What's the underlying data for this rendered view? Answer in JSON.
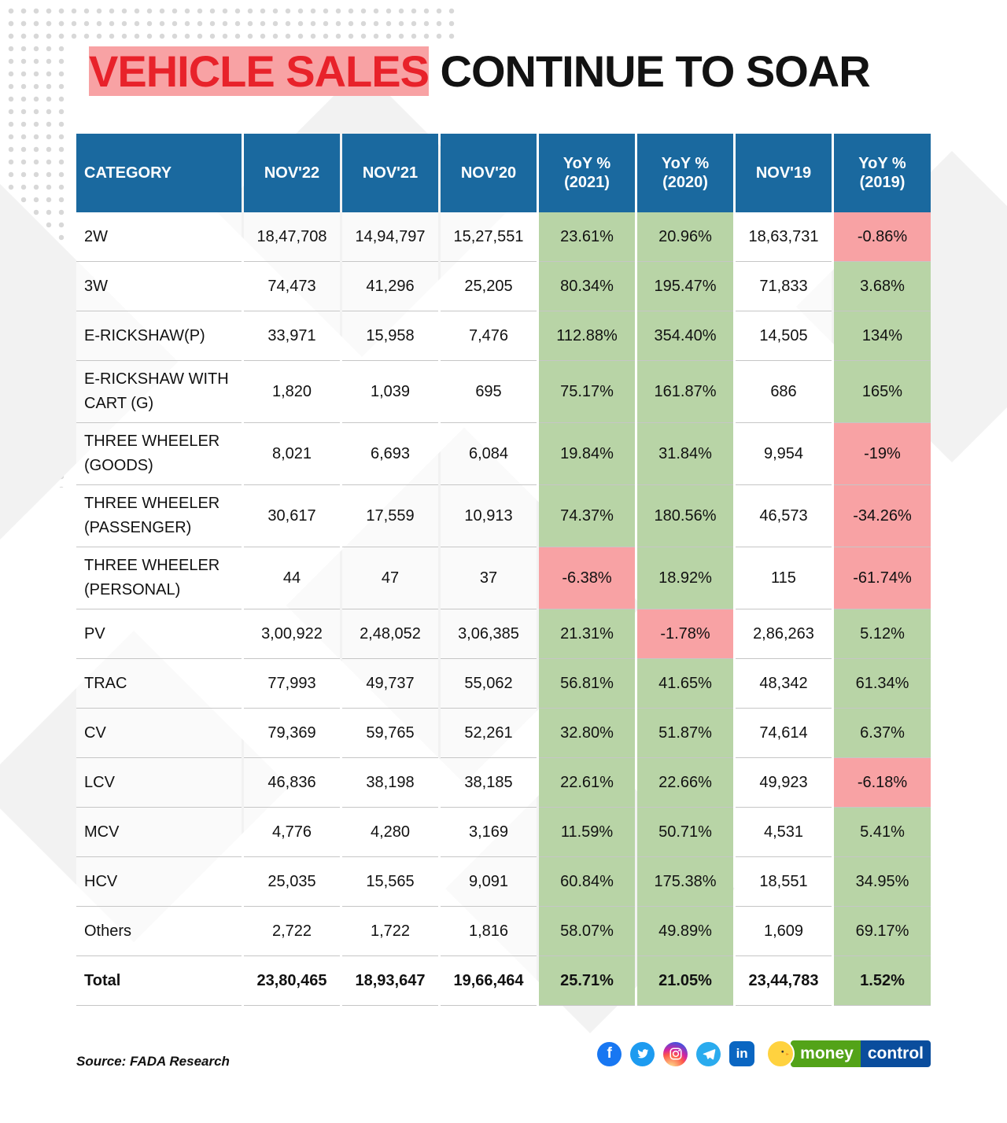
{
  "page": {
    "title_red": "VEHICLE SALES",
    "title_rest": " CONTINUE TO SOAR"
  },
  "chart_data": {
    "type": "table",
    "title": "VEHICLE SALES CONTINUE TO SOAR",
    "columns": [
      "CATEGORY",
      "NOV'22",
      "NOV'21",
      "NOV'20",
      "YoY % (2021)",
      "YoY % (2020)",
      "NOV'19",
      "YoY % (2019)"
    ],
    "rows": [
      {
        "cells": [
          "2W",
          "18,47,708",
          "14,94,797",
          "15,27,551",
          "23.61%",
          "20.96%",
          "18,63,731",
          "-0.86%"
        ],
        "yoy": [
          "green",
          "green",
          "red"
        ]
      },
      {
        "cells": [
          "3W",
          "74,473",
          "41,296",
          "25,205",
          "80.34%",
          "195.47%",
          "71,833",
          "3.68%"
        ],
        "yoy": [
          "green",
          "green",
          "green"
        ]
      },
      {
        "cells": [
          "E-RICKSHAW(P)",
          "33,971",
          "15,958",
          "7,476",
          "112.88%",
          "354.40%",
          "14,505",
          "134%"
        ],
        "yoy": [
          "green",
          "green",
          "green"
        ]
      },
      {
        "cells": [
          "E-RICKSHAW WITH CART (G)",
          "1,820",
          "1,039",
          "695",
          "75.17%",
          "161.87%",
          "686",
          "165%"
        ],
        "yoy": [
          "green",
          "green",
          "green"
        ]
      },
      {
        "cells": [
          "THREE WHEELER (GOODS)",
          "8,021",
          "6,693",
          "6,084",
          "19.84%",
          "31.84%",
          "9,954",
          "-19%"
        ],
        "yoy": [
          "green",
          "green",
          "red"
        ]
      },
      {
        "cells": [
          "THREE WHEELER (PASSENGER)",
          "30,617",
          "17,559",
          "10,913",
          "74.37%",
          "180.56%",
          "46,573",
          "-34.26%"
        ],
        "yoy": [
          "green",
          "green",
          "red"
        ]
      },
      {
        "cells": [
          "THREE WHEELER (PERSONAL)",
          "44",
          "47",
          "37",
          "-6.38%",
          "18.92%",
          "115",
          "-61.74%"
        ],
        "yoy": [
          "red",
          "green",
          "red"
        ]
      },
      {
        "cells": [
          "PV",
          "3,00,922",
          "2,48,052",
          "3,06,385",
          "21.31%",
          "-1.78%",
          "2,86,263",
          "5.12%"
        ],
        "yoy": [
          "green",
          "red",
          "green"
        ]
      },
      {
        "cells": [
          "TRAC",
          "77,993",
          "49,737",
          "55,062",
          "56.81%",
          "41.65%",
          "48,342",
          "61.34%"
        ],
        "yoy": [
          "green",
          "green",
          "green"
        ]
      },
      {
        "cells": [
          "CV",
          "79,369",
          "59,765",
          "52,261",
          "32.80%",
          "51.87%",
          "74,614",
          "6.37%"
        ],
        "yoy": [
          "green",
          "green",
          "green"
        ]
      },
      {
        "cells": [
          "LCV",
          "46,836",
          "38,198",
          "38,185",
          "22.61%",
          "22.66%",
          "49,923",
          "-6.18%"
        ],
        "yoy": [
          "green",
          "green",
          "red"
        ]
      },
      {
        "cells": [
          "MCV",
          "4,776",
          "4,280",
          "3,169",
          "11.59%",
          "50.71%",
          "4,531",
          "5.41%"
        ],
        "yoy": [
          "green",
          "green",
          "green"
        ]
      },
      {
        "cells": [
          "HCV",
          "25,035",
          "15,565",
          "9,091",
          "60.84%",
          "175.38%",
          "18,551",
          "34.95%"
        ],
        "yoy": [
          "green",
          "green",
          "green"
        ]
      },
      {
        "cells": [
          "Others",
          "2,722",
          "1,722",
          "1,816",
          "58.07%",
          "49.89%",
          "1,609",
          "69.17%"
        ],
        "yoy": [
          "green",
          "green",
          "green"
        ]
      },
      {
        "cells": [
          "Total",
          "23,80,465",
          "18,93,647",
          "19,66,464",
          "25.71%",
          "21.05%",
          "23,44,783",
          "1.52%"
        ],
        "yoy": [
          "green",
          "green",
          "green"
        ],
        "bold": true
      }
    ],
    "colors": {
      "header_bg": "#1a699f",
      "positive_bg": "#b8d4a6",
      "negative_bg": "#f8a2a4",
      "title_accent": "#e8222a"
    }
  },
  "footer": {
    "source": "Source: FADA Research",
    "social": [
      "facebook",
      "twitter",
      "instagram",
      "telegram",
      "linkedin"
    ],
    "linkedin_label": "in",
    "facebook_label": "f",
    "logo": {
      "money": "money",
      "control": "control"
    }
  }
}
